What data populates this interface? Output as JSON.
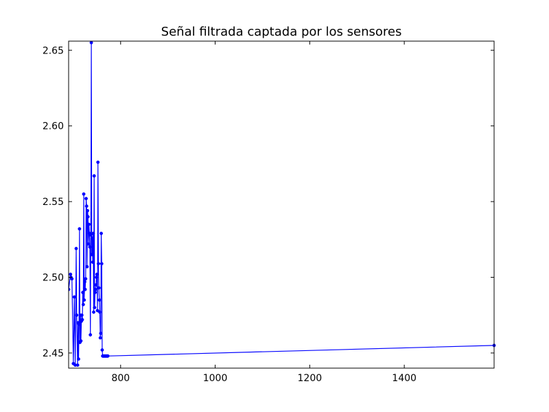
{
  "chart_data": {
    "type": "line",
    "title": "Señal filtrada captada por los sensores",
    "xlabel": "",
    "ylabel": "",
    "xlim": [
      690,
      1590
    ],
    "ylim": [
      2.44,
      2.656
    ],
    "x_ticks": [
      800,
      1000,
      1200,
      1400
    ],
    "x_tick_labels": [
      "800",
      "1000",
      "1200",
      "1400"
    ],
    "y_ticks": [
      2.45,
      2.5,
      2.55,
      2.6,
      2.65
    ],
    "y_tick_labels": [
      "2.45",
      "2.50",
      "2.55",
      "2.60",
      "2.65"
    ],
    "grid": false,
    "legend": "none",
    "series": [
      {
        "color": "#0000ff",
        "marker": "circle",
        "x": [
          690,
          694,
          695,
          697,
          700,
          702,
          704,
          706,
          707,
          709,
          710,
          711,
          712,
          713,
          714,
          715,
          716,
          717,
          718,
          719,
          720,
          721,
          722,
          723,
          724,
          725,
          726,
          727,
          728,
          729,
          730,
          731,
          732,
          733,
          734,
          735,
          736,
          737,
          738,
          739,
          740,
          741,
          742,
          743,
          744,
          745,
          746,
          747,
          748,
          749,
          750,
          751,
          752,
          753,
          754,
          755,
          756,
          757,
          758,
          759,
          760,
          761,
          762,
          763,
          764,
          765,
          766,
          767,
          768,
          769,
          770,
          771,
          772,
          773,
          1590
        ],
        "y": [
          2.492,
          2.502,
          2.5,
          2.499,
          2.443,
          2.487,
          2.442,
          2.519,
          2.475,
          2.442,
          2.47,
          2.446,
          2.469,
          2.532,
          2.457,
          2.475,
          2.458,
          2.471,
          2.475,
          2.472,
          2.49,
          2.482,
          2.555,
          2.485,
          2.497,
          2.492,
          2.499,
          2.552,
          2.547,
          2.507,
          2.544,
          2.54,
          2.522,
          2.535,
          2.529,
          2.52,
          2.462,
          2.528,
          2.655,
          2.515,
          2.526,
          2.51,
          2.529,
          2.477,
          2.567,
          2.48,
          2.49,
          2.492,
          2.495,
          2.5,
          2.502,
          2.478,
          2.576,
          2.509,
          2.493,
          2.485,
          2.477,
          2.46,
          2.463,
          2.529,
          2.509,
          2.452,
          2.448,
          2.448,
          2.448,
          2.448,
          2.448,
          2.448,
          2.448,
          2.448,
          2.448,
          2.448,
          2.448,
          2.448,
          2.455
        ]
      }
    ]
  }
}
